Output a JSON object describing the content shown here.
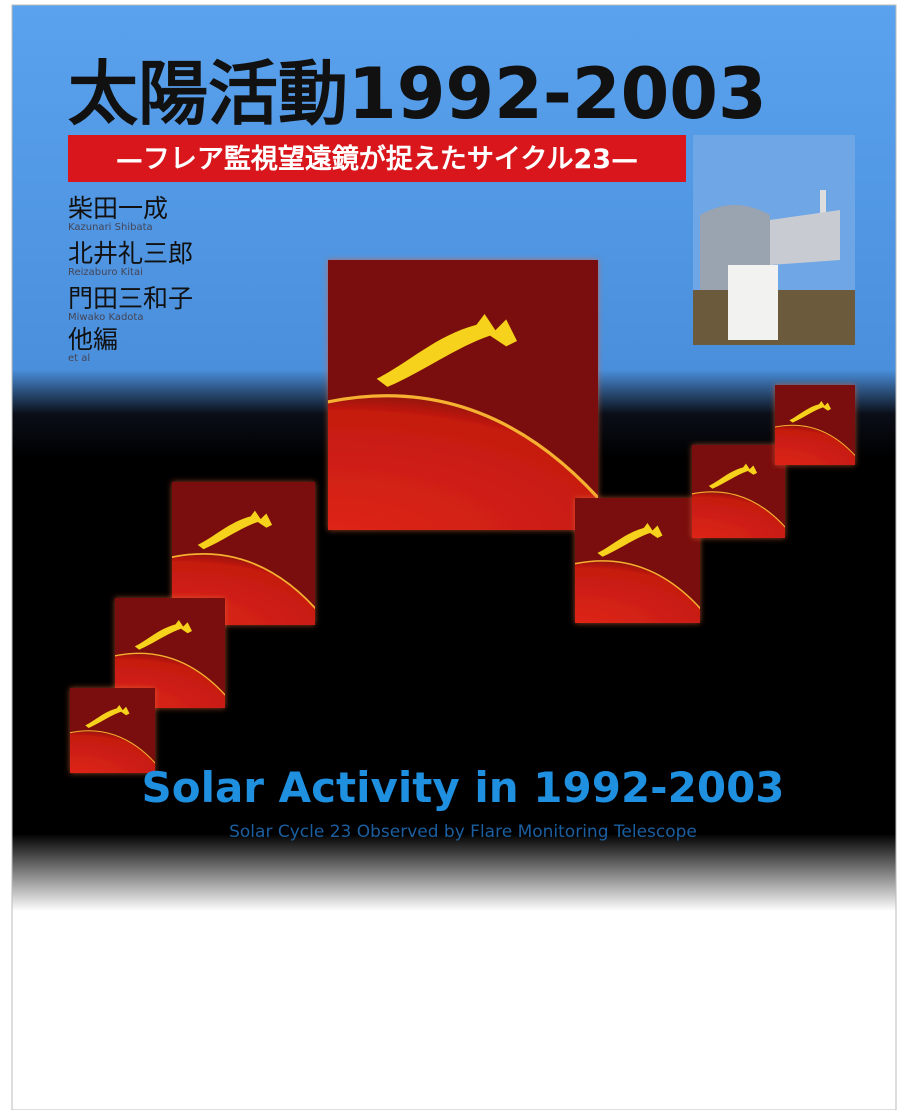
{
  "cover": {
    "title": "太陽活動1992-2003",
    "subtitle": "—フレア監視望遠鏡が捉えたサイクル23—",
    "authors": [
      {
        "name": "柴田一成",
        "romaji": "Kazunari Shibata"
      },
      {
        "name": "北井礼三郎",
        "romaji": "Reizaburo Kitai"
      },
      {
        "name": "門田三和子",
        "romaji": "Miwako Kadota"
      },
      {
        "name": "他編",
        "romaji": "et al"
      }
    ],
    "english_title": "Solar Activity in 1992-2003",
    "english_subtitle": "Solar Cycle 23 Observed by Flare Monitoring Telescope"
  }
}
